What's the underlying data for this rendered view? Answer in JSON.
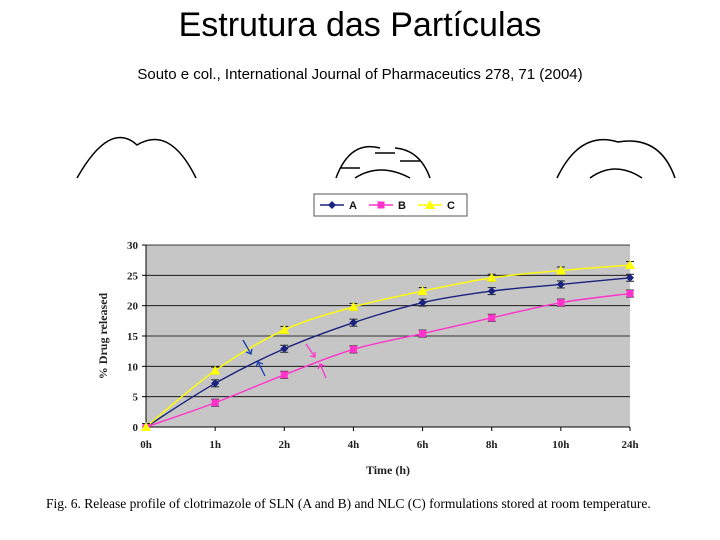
{
  "slide": {
    "title": "Estrutura das Partículas",
    "subtitle": "Souto e col., International Journal of Pharmaceutics 278, 71 (2004)"
  },
  "caption": "Fig. 6. Release profile of clotrimazole of SLN (A and B) and NLC (C) formulations stored at room temperature.",
  "chart_data": {
    "type": "line",
    "title": "",
    "xlabel": "Time (h)",
    "ylabel": "% Drug released",
    "categories": [
      "0h",
      "1h",
      "2h",
      "4h",
      "6h",
      "8h",
      "10h",
      "24h"
    ],
    "ylim": [
      0,
      30
    ],
    "yticks": [
      0,
      5,
      10,
      15,
      20,
      25,
      30
    ],
    "grid": true,
    "legend": "top",
    "series": [
      {
        "name": "A",
        "color": "#1a237e",
        "marker": "diamond",
        "values": [
          0,
          7.2,
          12.9,
          17.2,
          20.5,
          22.4,
          23.5,
          24.6
        ]
      },
      {
        "name": "B",
        "color": "#ff33cc",
        "marker": "square",
        "values": [
          0,
          4.0,
          8.6,
          12.8,
          15.4,
          18.0,
          20.5,
          22.0
        ]
      },
      {
        "name": "C",
        "color": "#ffff00",
        "marker": "triangle",
        "values": [
          0,
          9.3,
          16.0,
          19.8,
          22.4,
          24.6,
          25.8,
          26.7
        ]
      }
    ]
  }
}
